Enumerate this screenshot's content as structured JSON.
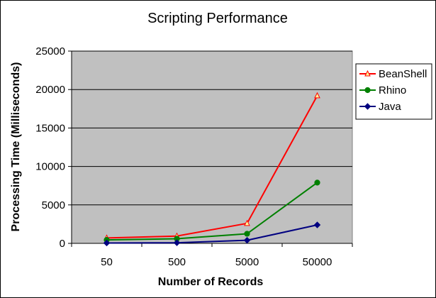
{
  "chart_data": {
    "type": "line",
    "title": "Scripting Performance",
    "xlabel": "Number of Records",
    "ylabel": "Processing Time (Milliseconds)",
    "categories": [
      "50",
      "500",
      "5000",
      "50000"
    ],
    "ylim": [
      0,
      25000
    ],
    "yticks": [
      "0",
      "5000",
      "10000",
      "15000",
      "20000",
      "25000"
    ],
    "grid": true,
    "plot_background": "#c0c0c0",
    "legend_position": "right",
    "series": [
      {
        "name": "BeanShell",
        "values": [
          700,
          950,
          2600,
          19200
        ],
        "color": "#ff0000",
        "marker": "triangle"
      },
      {
        "name": "Rhino",
        "values": [
          450,
          600,
          1250,
          7900
        ],
        "color": "#008000",
        "marker": "circle"
      },
      {
        "name": "Java",
        "values": [
          50,
          80,
          400,
          2400
        ],
        "color": "#000080",
        "marker": "diamond"
      }
    ]
  }
}
